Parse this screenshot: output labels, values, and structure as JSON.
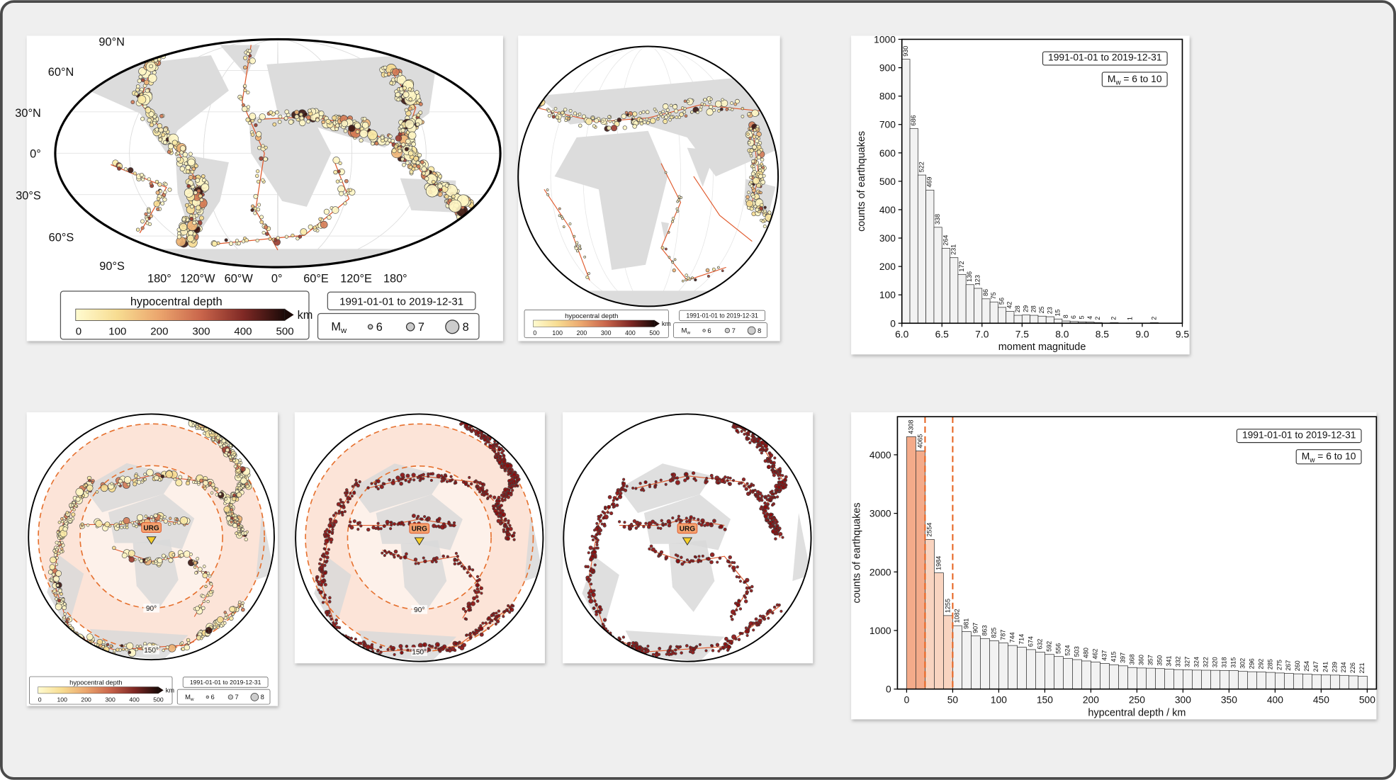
{
  "chart_data": [
    {
      "type": "histogram",
      "ylabel": "counts of earthquakes",
      "xlabel": "moment magnitude",
      "annotations": {
        "period": "1991-01-01 to 2019-12-31",
        "symbol": "M",
        "subscript": "w",
        "range": "= 6 to 10"
      },
      "bins": [
        6,
        6.1,
        6.2,
        6.3,
        6.4,
        6.5,
        6.6,
        6.7,
        6.8,
        6.9,
        7,
        7.1,
        7.2,
        7.3,
        7.4,
        7.5,
        7.6,
        7.7,
        7.8,
        7.9,
        8,
        8.1,
        8.2,
        8.3,
        8.4,
        8.5,
        8.6,
        8.7,
        8.8,
        8.9,
        9,
        9.1,
        9.2
      ],
      "values": [
        930,
        686,
        522,
        469,
        338,
        264,
        231,
        172,
        136,
        123,
        86,
        75,
        56,
        42,
        28,
        29,
        28,
        25,
        23,
        15,
        8,
        6,
        5,
        4,
        2,
        0,
        2,
        0,
        1,
        0,
        0,
        2
      ],
      "color": "#f2f2f2",
      "xlim": [
        6,
        9.5
      ],
      "xticks": [
        {
          "value": 6,
          "label": "6.0"
        },
        {
          "value": 6.5,
          "label": "6.5"
        },
        {
          "value": 7,
          "label": "7.0"
        },
        {
          "value": 7.5,
          "label": "7.5"
        },
        {
          "value": 8,
          "label": "8.0"
        },
        {
          "value": 8.5,
          "label": "8.5"
        },
        {
          "value": 9,
          "label": "9.0"
        },
        {
          "value": 9.5,
          "label": "9.5"
        }
      ],
      "ylim": [
        0,
        1000
      ],
      "yticks": [
        0,
        100,
        200,
        300,
        400,
        500,
        600,
        700,
        800,
        900,
        1000
      ]
    },
    {
      "type": "histogram",
      "ylabel": "counts of earthquakes",
      "xlabel": "hypcentral depth / km",
      "annotations": {
        "period": "1991-01-01 to 2019-12-31",
        "symbol": "M",
        "subscript": "w",
        "range": "= 6 to 10"
      },
      "bins": [
        0,
        10,
        20,
        30,
        40,
        50,
        60,
        70,
        80,
        90,
        100,
        110,
        120,
        130,
        140,
        150,
        160,
        170,
        180,
        190,
        200,
        210,
        220,
        230,
        240,
        250,
        260,
        270,
        280,
        290,
        300,
        310,
        320,
        330,
        340,
        350,
        360,
        370,
        380,
        390,
        400,
        410,
        420,
        430,
        440,
        450,
        460,
        470,
        480,
        490,
        500
      ],
      "values": [
        4308,
        4065,
        2554,
        1984,
        1255,
        1082,
        981,
        907,
        863,
        825,
        787,
        744,
        714,
        674,
        632,
        592,
        556,
        524,
        503,
        480,
        462,
        437,
        415,
        397,
        368,
        360,
        357,
        350,
        341,
        332,
        327,
        324,
        322,
        320,
        318,
        315,
        302,
        296,
        292,
        285,
        275,
        267,
        260,
        254,
        247,
        241,
        239,
        234,
        226,
        221
      ],
      "color": "#f2f2f2",
      "highlights": [
        {
          "range": [
            0,
            20
          ],
          "color": "#f4ab8a"
        },
        {
          "range": [
            20,
            50
          ],
          "color": "#f9d4c0"
        }
      ],
      "xlim": [
        -10,
        510
      ],
      "xticks": [
        0,
        50,
        100,
        150,
        200,
        250,
        300,
        350,
        400,
        450,
        500
      ],
      "ylim": [
        0,
        4650
      ],
      "yticks": [
        0,
        1000,
        2000,
        3000,
        4000
      ]
    }
  ],
  "maps": {
    "lat_labels": [
      "90°N",
      "60°N",
      "30°N",
      "0°",
      "30°S",
      "60°S",
      "90°S"
    ],
    "lon_labels": [
      "180°",
      "120°W",
      "60°W",
      "0°",
      "60°E",
      "120°E",
      "180°"
    ],
    "legend": {
      "title": "hypocentral depth",
      "ticks": [
        0,
        100,
        200,
        300,
        400,
        500
      ],
      "unit": "km",
      "period": "1991-01-01 to 2019-12-31",
      "symbol": "M",
      "subscript": "w",
      "magnitudes": [
        6,
        7,
        8
      ]
    },
    "polar": {
      "station": "URG",
      "rings": [
        "90°",
        "150°"
      ]
    }
  }
}
